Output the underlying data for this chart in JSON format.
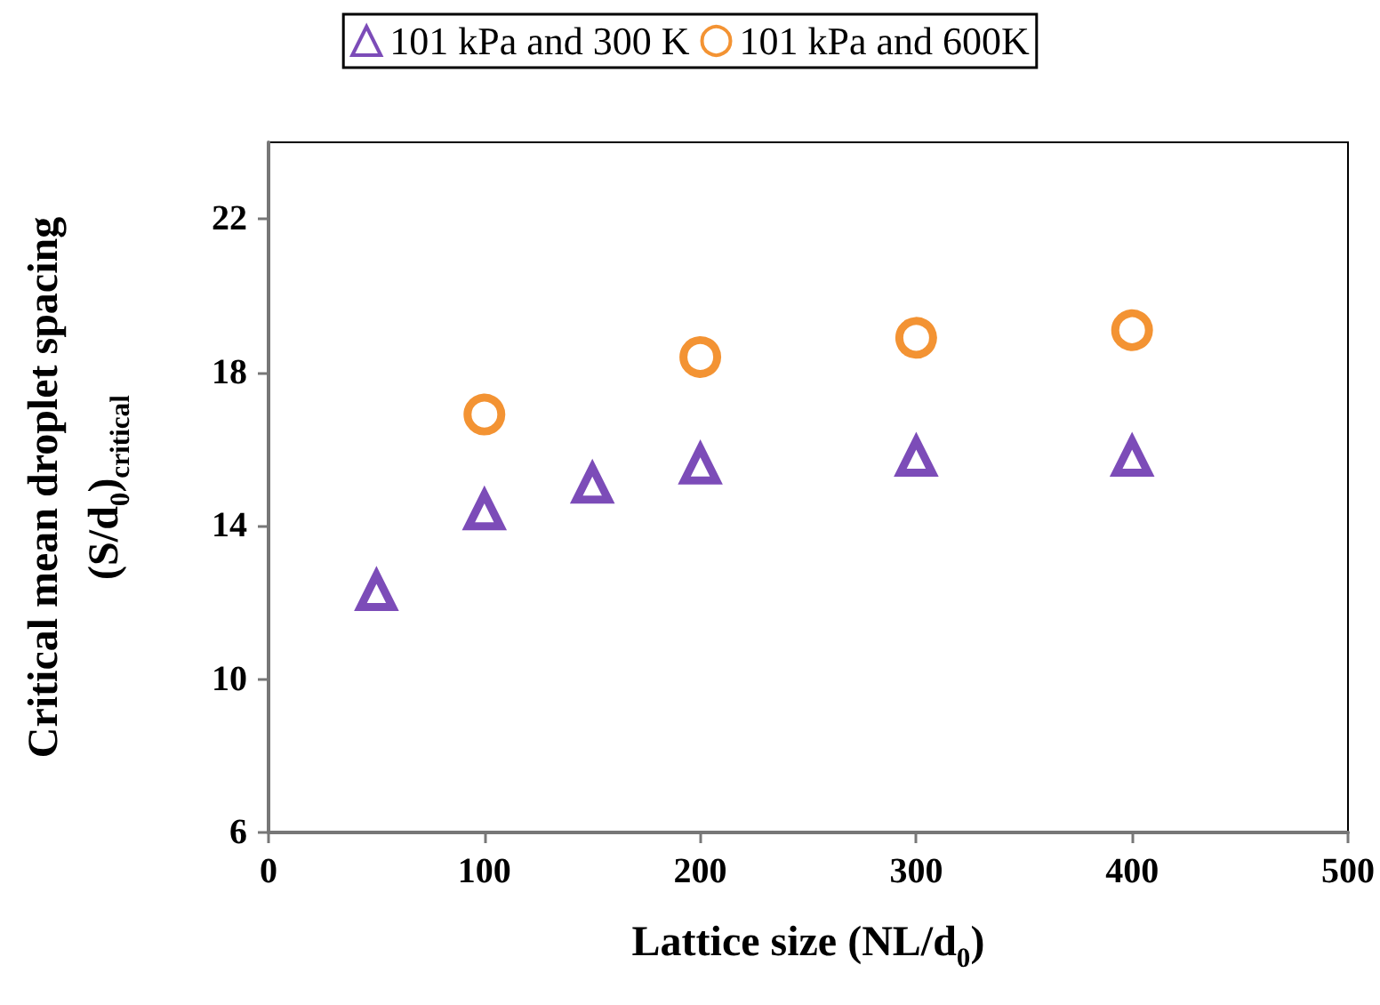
{
  "chart_data": {
    "type": "scatter",
    "xlabel": "Lattice size (NL/d$_{0}$)",
    "ylabel": "Critical mean droplet spacing\n(S/d$_{0}$)$_{critical}$",
    "xlim": [
      0,
      500
    ],
    "xticks": [
      0,
      100,
      200,
      300,
      400,
      500
    ],
    "ylim": [
      6,
      24
    ],
    "yticks": [
      6,
      10,
      14,
      18,
      22
    ],
    "grid": false,
    "legend": "top",
    "series": [
      {
        "name": "101 kPa and 300 K",
        "color": "#5b1fa6",
        "marker": "triangle",
        "x": [
          50,
          100,
          150,
          200,
          300,
          400
        ],
        "values": [
          12.3,
          14.4,
          15.1,
          15.6,
          15.8,
          15.8
        ]
      },
      {
        "name": "101 kPa and 600K",
        "color": "#f07800",
        "marker": "circle",
        "x": [
          100,
          200,
          300,
          400
        ],
        "values": [
          16.9,
          18.4,
          18.9,
          19.1
        ]
      }
    ]
  }
}
